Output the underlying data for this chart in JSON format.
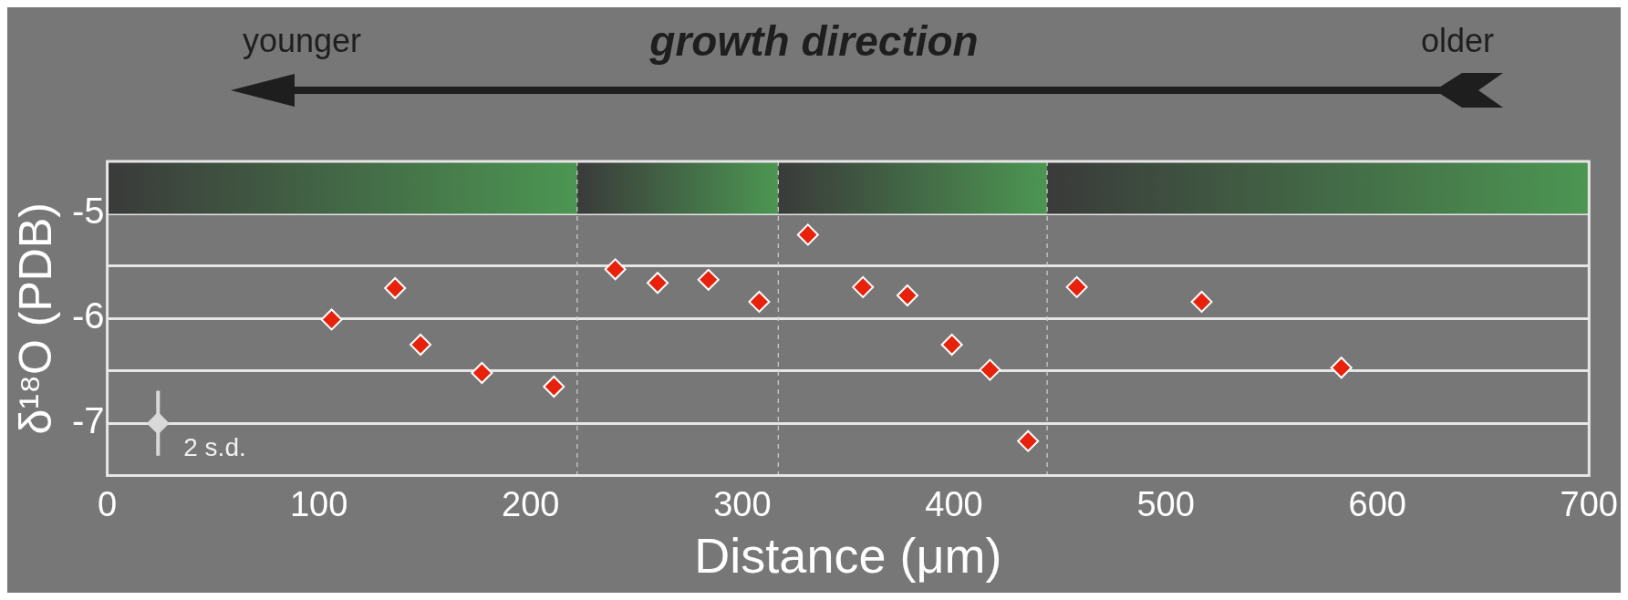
{
  "chart_data": {
    "type": "scatter",
    "title": "growth direction",
    "annotations": [
      "younger",
      "older"
    ],
    "xlabel": "Distance (μm)",
    "ylabel": "δ¹⁸O (PDB)",
    "xlim": [
      0,
      700
    ],
    "xticks": [
      0,
      100,
      200,
      300,
      400,
      500,
      600,
      700
    ],
    "ylim": [
      -7.5,
      -4.5
    ],
    "yticks": [
      -7,
      {
        "value": -6.5,
        "label": null
      },
      -6,
      {
        "value": -5.5,
        "label": null
      },
      -5
    ],
    "grid": "y",
    "legend": false,
    "marker": "diamond",
    "series": [
      {
        "color": "#e8210b",
        "x": [
          106,
          136,
          148,
          177,
          211,
          240,
          260,
          284,
          308,
          331,
          357,
          378,
          399,
          417,
          435,
          458,
          517,
          583
        ],
        "values": [
          -6.01,
          -5.71,
          -6.25,
          -6.52,
          -6.65,
          -5.53,
          -5.66,
          -5.63,
          -5.84,
          -5.2,
          -5.7,
          -5.78,
          -6.25,
          -6.49,
          -7.17,
          -5.7,
          -5.84,
          -6.47
        ]
      },
      {
        "name": "2 s.d.",
        "color": "#d9d9d9",
        "x": [
          24
        ],
        "values": [
          -7
        ],
        "errors": [
          0.31
        ]
      }
    ],
    "ref_lines": [
      {
        "axis": "x",
        "value": 222,
        "line_style": "dashed",
        "color": "#d0d0d0"
      },
      {
        "axis": "x",
        "value": 317,
        "line_style": "dashed",
        "color": "#d0d0d0"
      },
      {
        "axis": "x",
        "value": 444,
        "line_style": "dashed",
        "color": "#d0d0d0"
      }
    ],
    "bands": [
      {
        "axis": "x",
        "from": 0,
        "to": 222,
        "color": "#4c9652"
      },
      {
        "axis": "x",
        "from": 222,
        "to": 317,
        "color": "#4c9652"
      },
      {
        "axis": "x",
        "from": 317,
        "to": 444,
        "color": "#4c9652"
      },
      {
        "axis": "x",
        "from": 444,
        "to": 700,
        "color": "#4c9652"
      }
    ]
  }
}
